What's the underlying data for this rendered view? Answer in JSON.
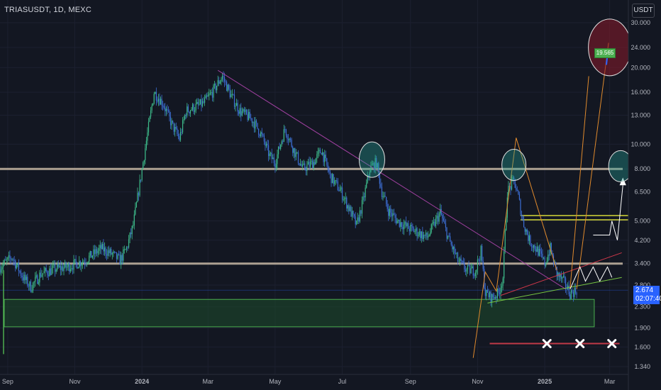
{
  "symbol_title": "TRIASUSDT, 1D, MEXC",
  "currency_button": "USDT",
  "last_price": "2.674",
  "countdown": "02:07:40",
  "target_label": "19.565",
  "colors": {
    "background": "#131722",
    "up": "#3dba8a",
    "down": "#3d6fd6",
    "resistance": "#c8b8a4",
    "zone": "#1e4d2b",
    "trendline": "#a040a0",
    "projection": "#e08a2d",
    "support_line": "#c03a48"
  },
  "chart_data": {
    "type": "candlestick",
    "y_scale": "log",
    "ylim": [
      1.25,
      36
    ],
    "y_ticks": [
      "30.000",
      "24.000",
      "20.000",
      "16.000",
      "13.000",
      "10.000",
      "8.000",
      "6.500",
      "5.000",
      "4.200",
      "3.400",
      "2.800",
      "2.300",
      "1.900",
      "1.600",
      "1.340"
    ],
    "y_tick_values": [
      30,
      24,
      20,
      16,
      13,
      10,
      8,
      6.5,
      5,
      4.2,
      3.4,
      2.8,
      2.3,
      1.9,
      1.6,
      1.34
    ],
    "x_ticks": [
      "Sep",
      "Nov",
      "2024",
      "Mar",
      "May",
      "Jul",
      "Sep",
      "Nov",
      "2025",
      "Mar"
    ],
    "x_tick_dates": [
      "2023-09-01",
      "2023-11-01",
      "2024-01-01",
      "2024-03-01",
      "2024-05-01",
      "2024-07-01",
      "2024-09-01",
      "2024-11-01",
      "2025-01-01",
      "2025-03-01"
    ],
    "price_path": [
      [
        "2023-08-25",
        3.3
      ],
      [
        "2023-09-05",
        3.6
      ],
      [
        "2023-09-15",
        3.0
      ],
      [
        "2023-09-22",
        2.75
      ],
      [
        "2023-10-01",
        3.1
      ],
      [
        "2023-10-15",
        3.25
      ],
      [
        "2023-10-25",
        3.3
      ],
      [
        "2023-11-10",
        3.5
      ],
      [
        "2023-11-25",
        3.9
      ],
      [
        "2023-12-05",
        3.7
      ],
      [
        "2023-12-12",
        3.5
      ],
      [
        "2023-12-18",
        3.9
      ],
      [
        "2023-12-24",
        4.8
      ],
      [
        "2023-12-30",
        7.0
      ],
      [
        "2024-01-06",
        11.0
      ],
      [
        "2024-01-12",
        16.0
      ],
      [
        "2024-01-20",
        14.5
      ],
      [
        "2024-01-28",
        12.0
      ],
      [
        "2024-02-04",
        10.5
      ],
      [
        "2024-02-10",
        13.5
      ],
      [
        "2024-02-18",
        14.0
      ],
      [
        "2024-02-26",
        14.5
      ],
      [
        "2024-03-05",
        16.0
      ],
      [
        "2024-03-14",
        18.5
      ],
      [
        "2024-03-22",
        15.5
      ],
      [
        "2024-03-30",
        13.5
      ],
      [
        "2024-04-10",
        12.5
      ],
      [
        "2024-04-18",
        11.0
      ],
      [
        "2024-04-26",
        9.0
      ],
      [
        "2024-05-01",
        8.5
      ],
      [
        "2024-05-10",
        11.5
      ],
      [
        "2024-05-18",
        9.5
      ],
      [
        "2024-05-26",
        8.0
      ],
      [
        "2024-06-05",
        8.5
      ],
      [
        "2024-06-12",
        9.5
      ],
      [
        "2024-06-20",
        7.5
      ],
      [
        "2024-06-30",
        6.5
      ],
      [
        "2024-07-08",
        5.5
      ],
      [
        "2024-07-14",
        4.8
      ],
      [
        "2024-07-20",
        6.0
      ],
      [
        "2024-07-26",
        8.0
      ],
      [
        "2024-08-01",
        8.5
      ],
      [
        "2024-08-06",
        6.5
      ],
      [
        "2024-08-12",
        5.5
      ],
      [
        "2024-08-20",
        5.0
      ],
      [
        "2024-08-30",
        4.7
      ],
      [
        "2024-09-08",
        4.5
      ],
      [
        "2024-09-16",
        4.3
      ],
      [
        "2024-09-22",
        4.8
      ],
      [
        "2024-09-28",
        5.4
      ],
      [
        "2024-10-06",
        4.2
      ],
      [
        "2024-10-14",
        3.5
      ],
      [
        "2024-10-22",
        3.2
      ],
      [
        "2024-10-30",
        3.2
      ],
      [
        "2024-11-04",
        3.8
      ],
      [
        "2024-11-08",
        2.6
      ],
      [
        "2024-11-14",
        2.5
      ],
      [
        "2024-11-20",
        2.6
      ],
      [
        "2024-11-24",
        3.0
      ],
      [
        "2024-11-28",
        6.5
      ],
      [
        "2024-12-04",
        7.2
      ],
      [
        "2024-12-08",
        6.2
      ],
      [
        "2024-12-12",
        5.0
      ],
      [
        "2024-12-18",
        4.2
      ],
      [
        "2024-12-26",
        3.8
      ],
      [
        "2025-01-01",
        3.4
      ],
      [
        "2025-01-06",
        3.9
      ],
      [
        "2025-01-12",
        3.1
      ],
      [
        "2025-01-18",
        2.9
      ],
      [
        "2025-01-24",
        2.6
      ],
      [
        "2025-01-30",
        2.674
      ]
    ],
    "horizontal_levels": [
      8.0,
      3.4
    ],
    "support_zone": [
      1.92,
      2.46
    ],
    "target_zone": [
      5.05,
      5.25
    ],
    "support_line": 1.65
  }
}
